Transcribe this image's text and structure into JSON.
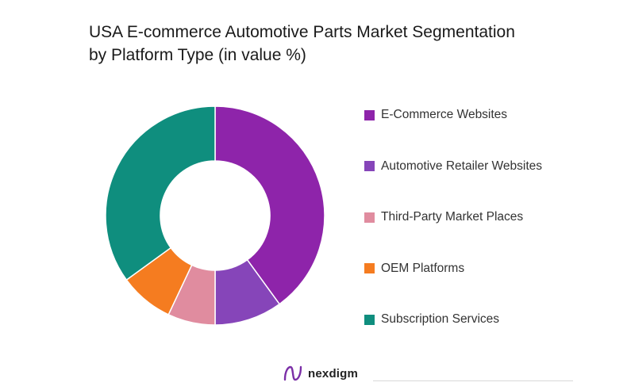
{
  "chart_data": {
    "type": "pie",
    "title": "USA E-commerce Automotive Parts Market Segmentation by Platform Type (in value %)",
    "title_lines": [
      "USA E-commerce Automotive Parts Market Segmentation",
      "by Platform Type (in value %)"
    ],
    "donut": true,
    "legend_position": "right",
    "series": [
      {
        "name": "E-Commerce Websites",
        "value": 40,
        "color": "#8e24aa"
      },
      {
        "name": "Automotive Retailer Websites",
        "value": 10,
        "color": "#8645b9"
      },
      {
        "name": "Third-Party Market Places",
        "value": 7,
        "color": "#e08c9f"
      },
      {
        "name": "OEM Platforms",
        "value": 8,
        "color": "#f57c20"
      },
      {
        "name": "Subscription Services",
        "value": 35,
        "color": "#0f8e7e"
      }
    ]
  },
  "footer": {
    "brand": "nexdigm",
    "logo_icon": "nexdigm-logo-icon",
    "logo_color": "#7b2fa7"
  }
}
